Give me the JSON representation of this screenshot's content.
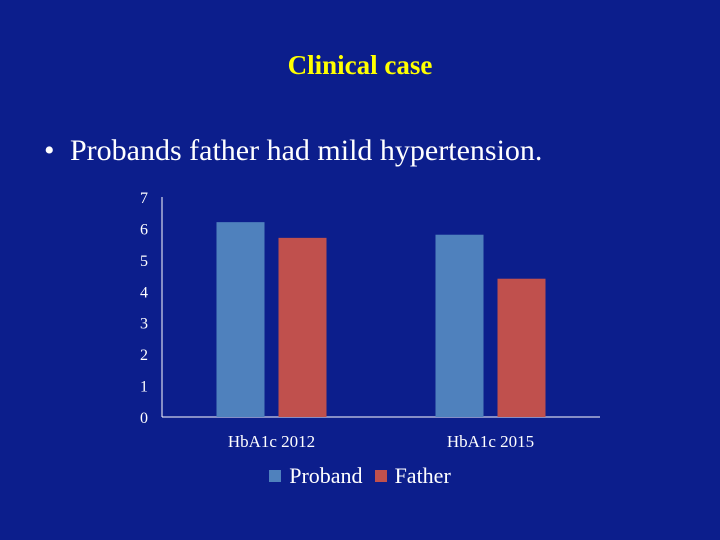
{
  "slide": {
    "title": "Clinical case",
    "bullet": "Probands father had mild hypertension.",
    "bullet_marker": "•"
  },
  "chart_data": {
    "type": "bar",
    "categories": [
      "HbA1c 2012",
      "HbA1c 2015"
    ],
    "series": [
      {
        "name": "Proband",
        "values": [
          6.2,
          5.8
        ],
        "color": "#4f81bd"
      },
      {
        "name": "Father",
        "values": [
          5.7,
          4.4
        ],
        "color": "#c0504d"
      }
    ],
    "yticks": [
      "0",
      "1",
      "2",
      "3",
      "4",
      "5",
      "6",
      "7"
    ],
    "ylim": [
      0,
      7
    ],
    "grid": false,
    "legend_position": "bottom"
  }
}
